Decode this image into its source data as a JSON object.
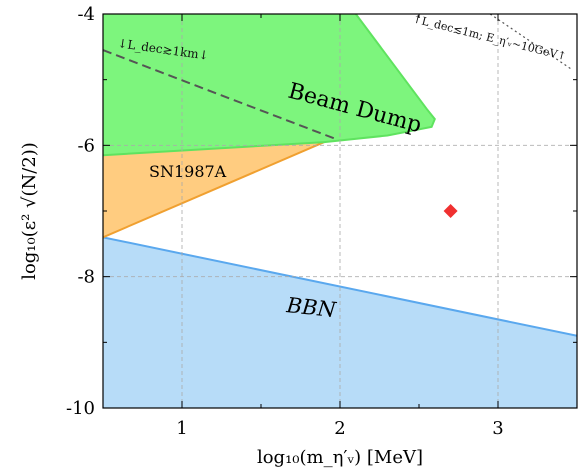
{
  "chart_data": {
    "type": "area",
    "xlabel": "log₁₀(m_η′ᵥ) [MeV]",
    "ylabel": "log₁₀(ε² √(N/2))",
    "xlim": [
      0.5,
      3.5
    ],
    "ylim": [
      -10,
      -4
    ],
    "x_ticks": [
      "1",
      "2",
      "3"
    ],
    "y_ticks": [
      "-4",
      "-6",
      "-8",
      "-10"
    ],
    "grid": true,
    "regions": [
      {
        "name": "Beam Dump",
        "color": "#7df57d",
        "points": [
          [
            0.5,
            -4
          ],
          [
            2.1,
            -4
          ],
          [
            2.55,
            -5.45
          ],
          [
            2.6,
            -5.6
          ],
          [
            2.58,
            -5.72
          ],
          [
            2.3,
            -5.85
          ],
          [
            1.9,
            -5.95
          ],
          [
            1.0,
            -6.1
          ],
          [
            0.5,
            -6.15
          ]
        ]
      },
      {
        "name": "SN1987A",
        "color": "#ffcc80",
        "points": [
          [
            0.5,
            -6.15
          ],
          [
            1.9,
            -5.95
          ],
          [
            0.5,
            -7.4
          ]
        ]
      },
      {
        "name": "BBN",
        "color": "#b7dcf8",
        "points": [
          [
            0.5,
            -7.4
          ],
          [
            3.5,
            -8.9
          ],
          [
            3.5,
            -10
          ],
          [
            0.5,
            -10
          ]
        ]
      }
    ],
    "lines": [
      {
        "label": "↓L_dec≳1km↓",
        "style": "dashed",
        "color": "#555555",
        "points": [
          [
            0.5,
            -4.55
          ],
          [
            1.97,
            -5.9
          ]
        ]
      },
      {
        "label": "↑L_dec≲1m; E_η′ᵥ∼10GeV↑",
        "style": "dotted",
        "color": "#555555",
        "points": [
          [
            2.95,
            -4.0
          ],
          [
            3.47,
            -4.85
          ]
        ]
      }
    ],
    "points": [
      {
        "x": 2.7,
        "y": -7.0,
        "marker": "diamond",
        "color": "#f03030"
      }
    ],
    "region_labels": {
      "beam_dump": "Beam Dump",
      "sn1987a": "SN1987A",
      "bbn": "BBN"
    }
  }
}
